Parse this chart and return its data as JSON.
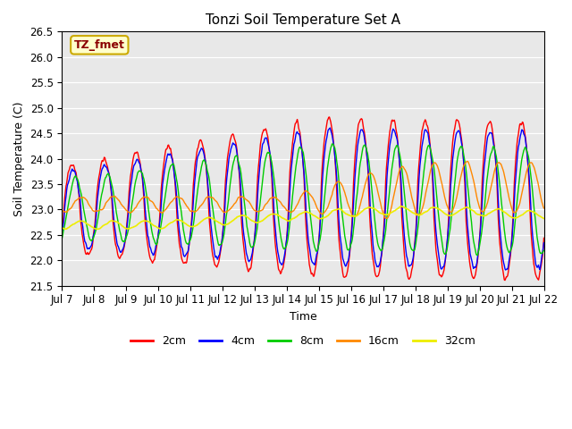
{
  "title": "Tonzi Soil Temperature Set A",
  "xlabel": "Time",
  "ylabel": "Soil Temperature (C)",
  "ylim": [
    21.5,
    26.5
  ],
  "annotation": "TZ_fmet",
  "bg_color": "#e8e8e8",
  "series_colors": {
    "2cm": "#ff0000",
    "4cm": "#0000ff",
    "8cm": "#00cc00",
    "16cm": "#ff8800",
    "32cm": "#eeee00"
  },
  "xtick_labels": [
    "Jul 7",
    "Jul 8",
    "Jul 9",
    "Jul 10",
    "Jul 11",
    "Jul 12",
    "Jul 13",
    "Jul 14",
    "Jul 15",
    "Jul 16",
    "Jul 17",
    "Jul 18",
    "Jul 19",
    "Jul 20",
    "Jul 21",
    "Jul 22"
  ],
  "days": 15,
  "ppd": 48
}
